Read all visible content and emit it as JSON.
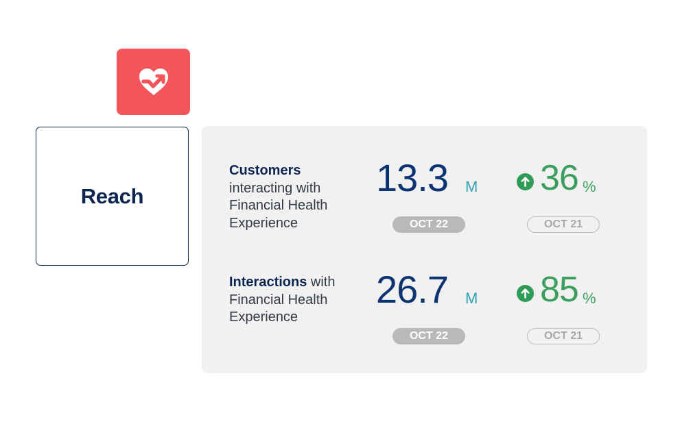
{
  "header": {
    "icon": "heart-trend-icon",
    "icon_color": "#f2555a",
    "title": "Reach"
  },
  "metrics": [
    {
      "label_bold": "Customers",
      "label_rest": "interacting with Financial Health Experience",
      "value": "13.3",
      "unit": "M",
      "current_period": "OCT 22",
      "change_icon": "arrow-up-circle-icon",
      "change_value": "36",
      "change_unit": "%",
      "previous_period": "OCT 21"
    },
    {
      "label_bold": "Interactions",
      "label_rest": "with Financial Health Experience",
      "value": "26.7",
      "unit": "M",
      "current_period": "OCT 22",
      "change_icon": "arrow-up-circle-icon",
      "change_value": "85",
      "change_unit": "%",
      "previous_period": "OCT 21"
    }
  ],
  "colors": {
    "navy": "#0d2650",
    "value_blue": "#0d3472",
    "unit_teal": "#33a0b5",
    "positive_green": "#3a9e5c",
    "panel_bg": "#f1f1f1"
  }
}
